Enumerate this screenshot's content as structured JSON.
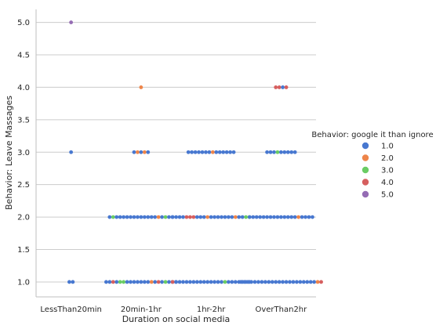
{
  "chart_data": {
    "type": "scatter",
    "subtype": "swarm",
    "xlabel": "Duration on social media",
    "ylabel": "Behavior: Leave Massages",
    "categories": [
      "LessThan20min",
      "20min-1hr",
      "1hr-2hr",
      "OverThan2hr"
    ],
    "y_ticks": [
      "1.0",
      "1.5",
      "2.0",
      "2.5",
      "3.0",
      "3.5",
      "4.0",
      "4.5",
      "5.0"
    ],
    "ylim": [
      0.77,
      5.2
    ],
    "grid": "horizontal",
    "legend": {
      "title": "Behavior: google it than ignore",
      "placement": "right",
      "entries": [
        {
          "label": "1.0",
          "color": "#4878d0"
        },
        {
          "label": "2.0",
          "color": "#ee854a"
        },
        {
          "label": "3.0",
          "color": "#6acc64"
        },
        {
          "label": "4.0",
          "color": "#d65f5f"
        },
        {
          "label": "5.0",
          "color": "#956cb4"
        }
      ]
    },
    "groups": [
      {
        "category": "LessThan20min",
        "y": 5.0,
        "hues": [
          "5"
        ]
      },
      {
        "category": "LessThan20min",
        "y": 3.0,
        "hues": [
          "1"
        ]
      },
      {
        "category": "LessThan20min",
        "y": 1.0,
        "hues": [
          "1",
          "1"
        ]
      },
      {
        "category": "20min-1hr",
        "y": 4.0,
        "hues": [
          "2"
        ]
      },
      {
        "category": "20min-1hr",
        "y": 3.0,
        "hues": [
          "1",
          "2",
          "1",
          "2",
          "1"
        ]
      },
      {
        "category": "20min-1hr",
        "y": 2.0,
        "hues": [
          "1",
          "3",
          "1",
          "1",
          "1",
          "1",
          "1",
          "1",
          "1",
          "1",
          "1",
          "1",
          "1",
          "1",
          "2",
          "1",
          "3",
          "1",
          "1"
        ]
      },
      {
        "category": "20min-1hr",
        "y": 1.0,
        "hues": [
          "1",
          "1",
          "4",
          "1",
          "3",
          "3",
          "1",
          "1",
          "1",
          "1",
          "1",
          "1",
          "1",
          "2",
          "1",
          "4",
          "1",
          "3",
          "1",
          "1",
          "1"
        ]
      },
      {
        "category": "1hr-2hr",
        "y": 3.0,
        "hues": [
          "1",
          "1",
          "1",
          "1",
          "1",
          "1",
          "1",
          "2",
          "1",
          "1",
          "1",
          "1",
          "1",
          "1"
        ]
      },
      {
        "category": "1hr-2hr",
        "y": 2.0,
        "hues": [
          "1",
          "1",
          "1",
          "1",
          "4",
          "4",
          "4",
          "1",
          "1",
          "1",
          "2",
          "1",
          "1",
          "1",
          "1",
          "1",
          "1",
          "1",
          "2",
          "1",
          "1",
          "3",
          "3"
        ]
      },
      {
        "category": "1hr-2hr",
        "y": 1.0,
        "hues": [
          "4",
          "1",
          "1",
          "1",
          "1",
          "1",
          "1",
          "1",
          "1",
          "1",
          "1",
          "1",
          "1",
          "1",
          "1",
          "3",
          "1",
          "1",
          "1",
          "1",
          "1",
          "1",
          "1"
        ]
      },
      {
        "category": "OverThan2hr",
        "y": 4.0,
        "hues": [
          "4",
          "4",
          "1",
          "4"
        ]
      },
      {
        "category": "OverThan2hr",
        "y": 3.0,
        "hues": [
          "1",
          "1",
          "1",
          "3",
          "1",
          "1",
          "1",
          "1",
          "1"
        ]
      },
      {
        "category": "OverThan2hr",
        "y": 2.0,
        "hues": [
          "1",
          "1",
          "1",
          "1",
          "1",
          "1",
          "1",
          "1",
          "1",
          "1",
          "1",
          "1",
          "1",
          "1",
          "2",
          "1",
          "1",
          "1",
          "1"
        ]
      },
      {
        "category": "OverThan2hr",
        "y": 1.0,
        "hues": [
          "1",
          "1",
          "1",
          "1",
          "1",
          "1",
          "1",
          "1",
          "1",
          "1",
          "1",
          "1",
          "1",
          "1",
          "1",
          "1",
          "1",
          "1",
          "1",
          "1",
          "1",
          "1",
          "2",
          "4"
        ]
      }
    ]
  }
}
